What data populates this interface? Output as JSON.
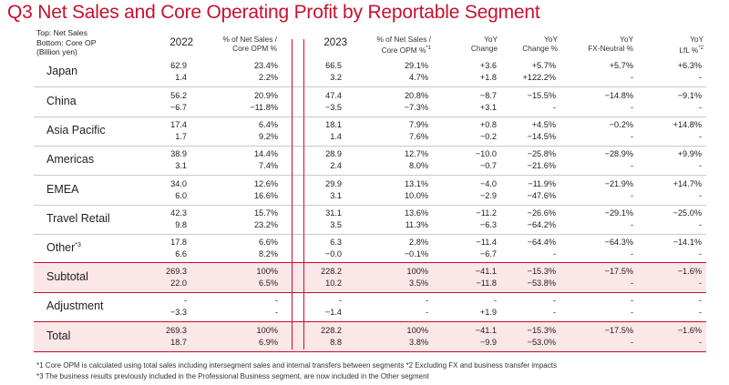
{
  "title": "Q3 Net Sales and Core Operating Profit by Reportable Segment",
  "unit_note": {
    "line1": "Top: Net Sales",
    "line2": "Bottom: Core OP",
    "line3": "(Billion yen)"
  },
  "headers": {
    "y2022": "2022",
    "pct2022_line1": "% of Net Sales /",
    "pct2022_line2": "Core OPM %",
    "y2023": "2023",
    "pct2023_line1": "% of Net Sales /",
    "pct2023_line2": "Core OPM %*1",
    "yoy_change_line1": "YoY",
    "yoy_change_line2": "Change",
    "yoy_pct_line1": "YoY",
    "yoy_pct_line2": "Change %",
    "yoy_fx_line1": "YoY",
    "yoy_fx_line2": "FX-Neutral %",
    "yoy_lfl_line1": "YoY",
    "yoy_lfl_line2": "LfL %*2"
  },
  "rows": [
    {
      "segment": "Japan",
      "sup": "",
      "top": [
        "62.9",
        "23.4%",
        "66.5",
        "29.1%",
        "+3.6",
        "+5.7%",
        "+5.7%",
        "+6.3%"
      ],
      "bot": [
        "1.4",
        "2.2%",
        "3.2",
        "4.7%",
        "+1.8",
        "+122.2%",
        "-",
        "-"
      ]
    },
    {
      "segment": "China",
      "sup": "",
      "top": [
        "56.2",
        "20.9%",
        "47.4",
        "20.8%",
        "−8.7",
        "−15.5%",
        "−14.8%",
        "−9.1%"
      ],
      "bot": [
        "−6.7",
        "−11.8%",
        "−3.5",
        "−7.3%",
        "+3.1",
        "-",
        "-",
        "-"
      ]
    },
    {
      "segment": "Asia Pacific",
      "sup": "",
      "top": [
        "17.4",
        "6.4%",
        "18.1",
        "7.9%",
        "+0.8",
        "+4.5%",
        "−0.2%",
        "+14.8%"
      ],
      "bot": [
        "1.7",
        "9.2%",
        "1.4",
        "7.6%",
        "−0.2",
        "−14.5%",
        "-",
        "-"
      ]
    },
    {
      "segment": "Americas",
      "sup": "",
      "top": [
        "38.9",
        "14.4%",
        "28.9",
        "12.7%",
        "−10.0",
        "−25.8%",
        "−28.9%",
        "+9.9%"
      ],
      "bot": [
        "3.1",
        "7.4%",
        "2.4",
        "8.0%",
        "−0.7",
        "−21.6%",
        "-",
        "-"
      ]
    },
    {
      "segment": "EMEA",
      "sup": "",
      "top": [
        "34.0",
        "12.6%",
        "29.9",
        "13.1%",
        "−4.0",
        "−11.9%",
        "−21.9%",
        "+14.7%"
      ],
      "bot": [
        "6.0",
        "16.6%",
        "3.1",
        "10.0%",
        "−2.9",
        "−47.6%",
        "-",
        "-"
      ]
    },
    {
      "segment": "Travel Retail",
      "sup": "",
      "top": [
        "42.3",
        "15.7%",
        "31.1",
        "13.6%",
        "−11.2",
        "−26.6%",
        "−29.1%",
        "−25.0%"
      ],
      "bot": [
        "9.8",
        "23.2%",
        "3.5",
        "11.3%",
        "−6.3",
        "−64.2%",
        "-",
        "-"
      ]
    },
    {
      "segment": "Other",
      "sup": "*3",
      "top": [
        "17.8",
        "6.6%",
        "6.3",
        "2.8%",
        "−11.4",
        "−64.4%",
        "−64.3%",
        "−14.1%"
      ],
      "bot": [
        "6.6",
        "8.2%",
        "−0.0",
        "−0.1%",
        "−6.7",
        "-",
        "-",
        "-"
      ]
    },
    {
      "segment": "Subtotal",
      "sup": "",
      "top": [
        "269.3",
        "100%",
        "228.2",
        "100%",
        "−41.1",
        "−15.3%",
        "−17.5%",
        "−1.6%"
      ],
      "bot": [
        "22.0",
        "6.5%",
        "10.2",
        "3.5%",
        "−11.8",
        "−53.8%",
        "-",
        "-"
      ]
    },
    {
      "segment": "Adjustment",
      "sup": "",
      "top": [
        "-",
        "-",
        "-",
        "-",
        "-",
        "-",
        "-",
        "-"
      ],
      "bot": [
        "−3.3",
        "-",
        "−1.4",
        "-",
        "+1.9",
        "-",
        "-",
        "-"
      ]
    },
    {
      "segment": "Total",
      "sup": "",
      "top": [
        "269.3",
        "100%",
        "228.2",
        "100%",
        "−41.1",
        "−15.3%",
        "−17.5%",
        "−1.6%"
      ],
      "bot": [
        "18.7",
        "6.9%",
        "8.8",
        "3.8%",
        "−9.9",
        "−53.0%",
        "-",
        "-"
      ]
    }
  ],
  "footnotes": {
    "line1": "*1 Core OPM is calculated using total sales including intersegment sales and internal transfers between segments    *2 Excluding FX and business transfer impacts",
    "line2": "*3 The business results previously included in the Professional Business segment, are now included in the Other segment"
  },
  "colors": {
    "accent": "#c8102e",
    "shade": "#fbe7e7",
    "rule": "#c9c9c9"
  }
}
